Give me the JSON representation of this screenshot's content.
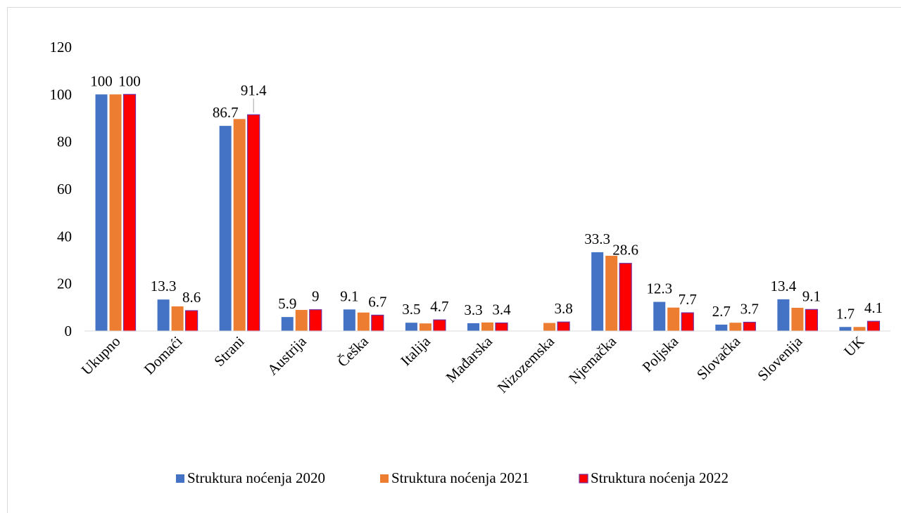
{
  "chart_data": {
    "type": "bar",
    "title": "",
    "xlabel": "",
    "ylabel": "",
    "ylim": [
      0,
      120
    ],
    "yticks": [
      0,
      20,
      40,
      60,
      80,
      100,
      120
    ],
    "grid": false,
    "legend_position": "bottom",
    "categories": [
      "Ukupno",
      "Domaći",
      "Strani",
      "Austrija",
      "Češka",
      "Italija",
      "Mađarska",
      "Nizozemska",
      "Njemačka",
      "Poljska",
      "Slovačka",
      "Slovenija",
      "UK"
    ],
    "series": [
      {
        "name": "Struktura noćenja 2020",
        "color": "#4472C4",
        "values": [
          100,
          13.3,
          86.7,
          5.9,
          9.1,
          3.5,
          3.3,
          null,
          33.3,
          12.3,
          2.7,
          13.4,
          1.7
        ]
      },
      {
        "name": "Struktura noćenja 2021",
        "color": "#ED7D31",
        "values": [
          100,
          10.4,
          89.6,
          8.9,
          7.8,
          3.2,
          3.6,
          3.4,
          31.8,
          9.9,
          3.5,
          9.8,
          1.7
        ]
      },
      {
        "name": "Struktura noćenja 2022",
        "color": "#FF0000",
        "border": "#7030A0",
        "values": [
          100,
          8.6,
          91.4,
          9,
          6.7,
          4.7,
          3.4,
          3.8,
          28.6,
          7.7,
          3.7,
          9.1,
          4.1
        ]
      }
    ],
    "data_labels": [
      {
        "category": "Ukupno",
        "series": 0,
        "text": "100"
      },
      {
        "category": "Ukupno",
        "series": 2,
        "text": "100"
      },
      {
        "category": "Domaći",
        "series": 0,
        "text": "13.3"
      },
      {
        "category": "Domaći",
        "series": 2,
        "text": "8.6"
      },
      {
        "category": "Strani",
        "series": 0,
        "text": "86.7"
      },
      {
        "category": "Strani",
        "series": 2,
        "text": "91.4"
      },
      {
        "category": "Austrija",
        "series": 0,
        "text": "5.9"
      },
      {
        "category": "Austrija",
        "series": 2,
        "text": "9"
      },
      {
        "category": "Češka",
        "series": 0,
        "text": "9.1"
      },
      {
        "category": "Češka",
        "series": 2,
        "text": "6.7"
      },
      {
        "category": "Italija",
        "series": 0,
        "text": "3.5"
      },
      {
        "category": "Italija",
        "series": 2,
        "text": "4.7"
      },
      {
        "category": "Mađarska",
        "series": 0,
        "text": "3.3"
      },
      {
        "category": "Mađarska",
        "series": 2,
        "text": "3.4"
      },
      {
        "category": "Nizozemska",
        "series": 2,
        "text": "3.8"
      },
      {
        "category": "Njemačka",
        "series": 0,
        "text": "33.3"
      },
      {
        "category": "Njemačka",
        "series": 2,
        "text": "28.6"
      },
      {
        "category": "Poljska",
        "series": 0,
        "text": "12.3"
      },
      {
        "category": "Poljska",
        "series": 2,
        "text": "7.7"
      },
      {
        "category": "Slovačka",
        "series": 0,
        "text": "2.7"
      },
      {
        "category": "Slovačka",
        "series": 2,
        "text": "3.7"
      },
      {
        "category": "Slovenija",
        "series": 0,
        "text": "13.4"
      },
      {
        "category": "Slovenija",
        "series": 2,
        "text": "9.1"
      },
      {
        "category": "UK",
        "series": 0,
        "text": "1.7"
      },
      {
        "category": "UK",
        "series": 2,
        "text": "4.1"
      }
    ]
  }
}
